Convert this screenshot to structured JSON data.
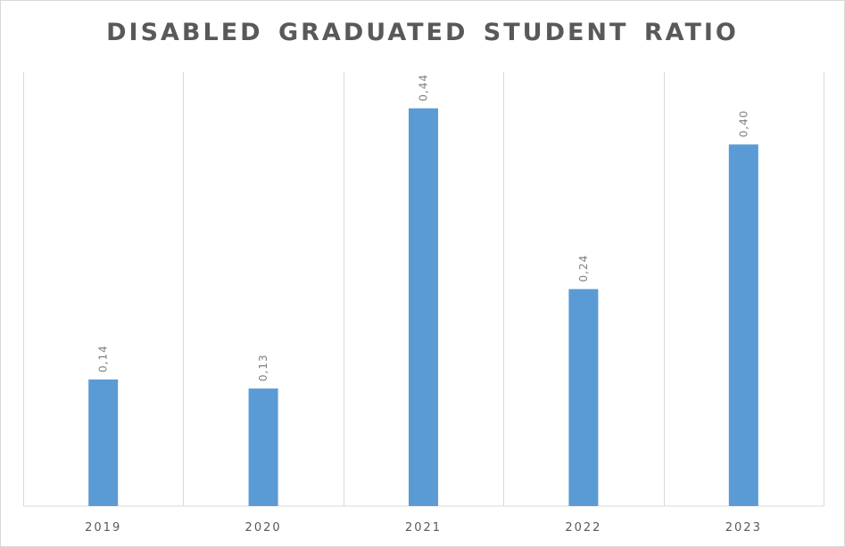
{
  "chart_data": {
    "type": "bar",
    "title": "DISABLED GRADUATED STUDENT RATIO",
    "xlabel": "",
    "ylabel": "",
    "categories": [
      "2019",
      "2020",
      "2021",
      "2022",
      "2023"
    ],
    "values": [
      0.14,
      0.13,
      0.44,
      0.24,
      0.4
    ],
    "data_labels": [
      "0,14",
      "0,13",
      "0,44",
      "0,24",
      "0,40"
    ],
    "ylim": [
      0,
      0.48
    ],
    "bar_color": "#5b9bd5",
    "grid": "vertical category separators",
    "legend": "none"
  }
}
